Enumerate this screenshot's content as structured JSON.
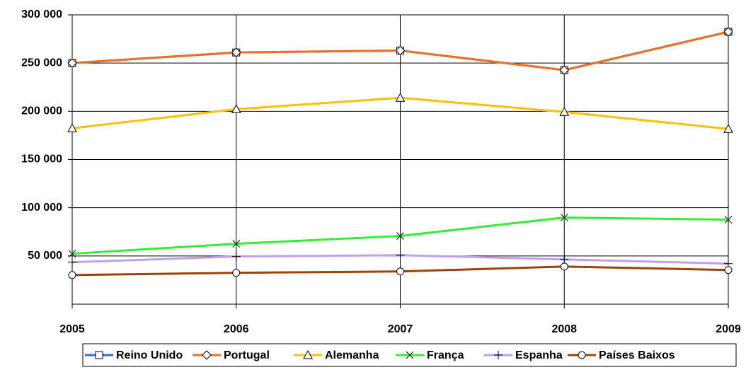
{
  "chart_data": {
    "type": "line",
    "categories": [
      "2005",
      "2006",
      "2007",
      "2008",
      "2009"
    ],
    "series": [
      {
        "name": "Reino Unido",
        "color": "#3366ff",
        "marker": "square",
        "values": [
          250000,
          261000,
          263000,
          242700,
          282400
        ]
      },
      {
        "name": "Portugal",
        "color": "#f07020",
        "marker": "diamond",
        "values": [
          250000,
          261000,
          263000,
          242700,
          282400
        ]
      },
      {
        "name": "Alemanha",
        "color": "#ffc000",
        "marker": "triangle",
        "values": [
          182400,
          202200,
          214000,
          199300,
          181700
        ]
      },
      {
        "name": "França",
        "color": "#33ee33",
        "marker": "x",
        "values": [
          52300,
          62600,
          70700,
          89800,
          87600
        ]
      },
      {
        "name": "Espanha",
        "color": "#c09ff0",
        "marker": "plus",
        "values": [
          43500,
          49400,
          50800,
          46400,
          42000
        ]
      },
      {
        "name": "Países Baixos",
        "color": "#a0400a",
        "marker": "circle",
        "values": [
          30200,
          32500,
          33900,
          39000,
          35400
        ]
      }
    ],
    "ylim": [
      0,
      300000
    ],
    "yticks": [
      {
        "value": 50000,
        "label": "50 000"
      },
      {
        "value": 100000,
        "label": "100 000"
      },
      {
        "value": 150000,
        "label": "150 000"
      },
      {
        "value": 200000,
        "label": "200 000"
      },
      {
        "value": 250000,
        "label": "250 000"
      },
      {
        "value": 300000,
        "label": "300 000"
      }
    ],
    "grid": true,
    "legend": "bottom"
  }
}
